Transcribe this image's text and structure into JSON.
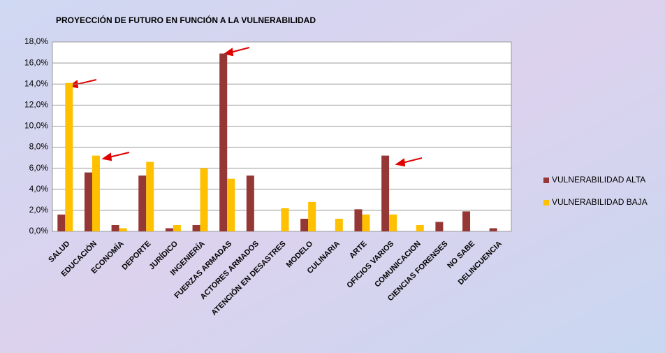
{
  "chart_data": {
    "type": "bar",
    "title": "PROYECCIÓN DE FUTURO EN FUNCIÓN A LA VULNERABILIDAD",
    "categories": [
      "SALUD",
      "EDUCACIÓN",
      "ECONOMÍA",
      "DEPORTE",
      "JURÍDICO",
      "INGENIERÍA",
      "FUERZAS ARMADAS",
      "ACTORES ARMADOS",
      "ATENCIÓN EN DESASTRES",
      "MODELO",
      "CULINARIA",
      "ARTE",
      "OFICIOS VARIOS",
      "COMUNICACION",
      "CIENCIAS FORENSES",
      "NO SABE",
      "DELINCUENCIA"
    ],
    "series": [
      {
        "name": "VULNERABILIDAD ALTA",
        "color": "#953735",
        "values": [
          1.6,
          5.6,
          0.6,
          5.3,
          0.3,
          0.6,
          16.9,
          5.3,
          0,
          1.2,
          0,
          2.1,
          7.2,
          0,
          0.9,
          1.9,
          0.3
        ]
      },
      {
        "name": "VULNERABILIDAD BAJA",
        "color": "#ffc000",
        "values": [
          14.1,
          7.2,
          0.3,
          6.6,
          0.6,
          6.0,
          5.0,
          0,
          2.2,
          2.8,
          1.2,
          1.6,
          1.6,
          0.6,
          0,
          0,
          0
        ]
      }
    ],
    "ylim": [
      0,
      18
    ],
    "yticks": [
      {
        "value": 0,
        "label": "0,0%"
      },
      {
        "value": 2,
        "label": "2,0%"
      },
      {
        "value": 4,
        "label": "4,0%"
      },
      {
        "value": 6,
        "label": "6,0%"
      },
      {
        "value": 8,
        "label": "8,0%"
      },
      {
        "value": 10,
        "label": "10,0%"
      },
      {
        "value": 12,
        "label": "12,0%"
      },
      {
        "value": 14,
        "label": "14,0%"
      },
      {
        "value": 16,
        "label": "16,0%"
      },
      {
        "value": 18,
        "label": "18,0%"
      }
    ],
    "grid": true,
    "legend": "right"
  }
}
